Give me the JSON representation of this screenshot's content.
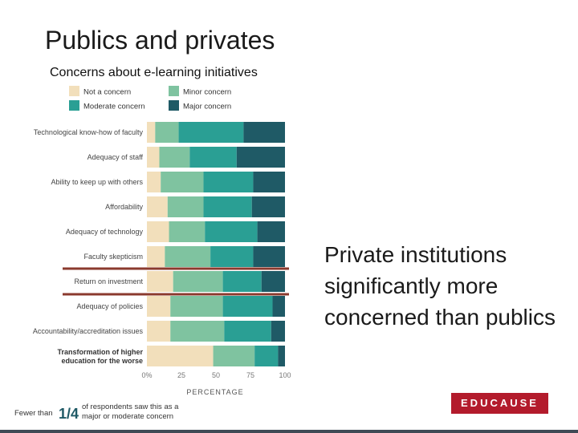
{
  "slide": {
    "title": "Publics and privates",
    "subtitle": "Concerns about e-learning initiatives",
    "callout": "Private institutions significantly more concerned than publics",
    "logo": "EDUCAUSE"
  },
  "chart_data": {
    "type": "bar",
    "stacked": true,
    "orientation": "horizontal",
    "categories": [
      "Technological know-how of faculty",
      "Adequacy of staff",
      "Ability to keep up with others",
      "Affordability",
      "Adequacy of technology",
      "Faculty skepticism",
      "Return on investment",
      "Adequacy of policies",
      "Accountability/accreditation issues",
      "Transformation of higher education for the worse"
    ],
    "series": [
      {
        "name": "Not a concern",
        "color": "#f2dfbb",
        "values": [
          6,
          9,
          10,
          15,
          16,
          13,
          19,
          17,
          17,
          48
        ]
      },
      {
        "name": "Minor concern",
        "color": "#7fc3a0",
        "values": [
          17,
          22,
          31,
          26,
          26,
          33,
          36,
          38,
          39,
          30
        ]
      },
      {
        "name": "Moderate concern",
        "color": "#2a9f94",
        "values": [
          47,
          34,
          36,
          35,
          38,
          31,
          28,
          36,
          34,
          17
        ]
      },
      {
        "name": "Major concern",
        "color": "#1f5a66",
        "values": [
          30,
          35,
          23,
          24,
          20,
          23,
          17,
          9,
          10,
          5
        ]
      }
    ],
    "emphasized_categories": [
      "Transformation of higher education for the worse"
    ],
    "highlighted_category": "Return on investment",
    "highlight_color": "#8b3a2e",
    "xlabel": "PERCENTAGE",
    "xlim": [
      0,
      100
    ],
    "xticks": [
      "0%",
      "25",
      "50",
      "75",
      "100"
    ],
    "legend_placement": "top",
    "footnote": {
      "prefix": "Fewer than",
      "fraction": "1/4",
      "text": "of respondents saw this as a major or moderate concern"
    }
  }
}
